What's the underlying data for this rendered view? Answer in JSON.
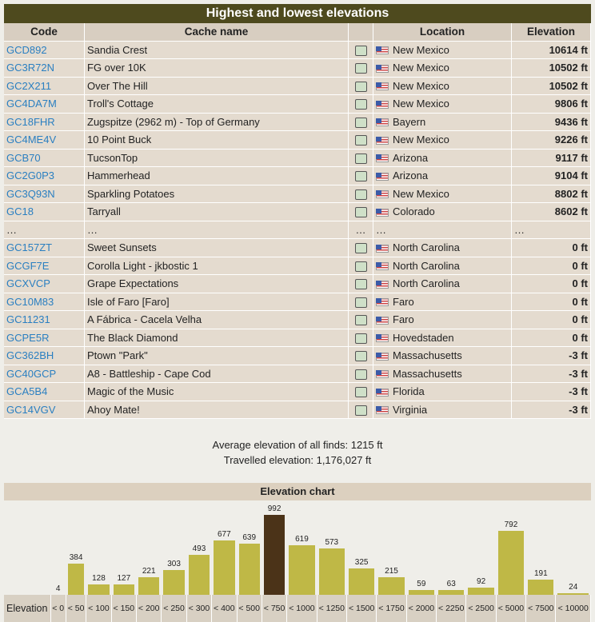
{
  "table": {
    "title": "Highest and lowest elevations",
    "headers": [
      "Code",
      "Cache name",
      "Location",
      "Elevation"
    ],
    "rows": [
      {
        "code": "GCD892",
        "name": "Sandia Crest",
        "location": "New Mexico",
        "elevation": "10614 ft"
      },
      {
        "code": "GC3R72N",
        "name": "FG over 10K",
        "location": "New Mexico",
        "elevation": "10502 ft"
      },
      {
        "code": "GC2X211",
        "name": "Over The Hill",
        "location": "New Mexico",
        "elevation": "10502 ft"
      },
      {
        "code": "GC4DA7M",
        "name": "Troll's Cottage",
        "location": "New Mexico",
        "elevation": "9806 ft"
      },
      {
        "code": "GC18FHR",
        "name": "Zugspitze (2962 m) - Top of Germany",
        "location": "Bayern",
        "elevation": "9436 ft"
      },
      {
        "code": "GC4ME4V",
        "name": "10 Point Buck",
        "location": "New Mexico",
        "elevation": "9226 ft"
      },
      {
        "code": "GCB70",
        "name": "TucsonTop",
        "location": "Arizona",
        "elevation": "9117 ft"
      },
      {
        "code": "GC2G0P3",
        "name": "Hammerhead",
        "location": "Arizona",
        "elevation": "9104 ft"
      },
      {
        "code": "GC3Q93N",
        "name": "Sparkling Potatoes",
        "location": "New Mexico",
        "elevation": "8802 ft"
      },
      {
        "code": "GC18",
        "name": "Tarryall",
        "location": "Colorado",
        "elevation": "8602 ft"
      },
      {
        "code": "…",
        "name": "…",
        "icon": "…",
        "location": "…",
        "elevation": "…"
      },
      {
        "code": "GC157ZT",
        "name": "Sweet Sunsets",
        "location": "North Carolina",
        "elevation": "0 ft"
      },
      {
        "code": "GCGF7E",
        "name": "Corolla Light - jkbostic 1",
        "location": "North Carolina",
        "elevation": "0 ft"
      },
      {
        "code": "GCXVCP",
        "name": "Grape Expectations",
        "location": "North Carolina",
        "elevation": "0 ft"
      },
      {
        "code": "GC10M83",
        "name": "Isle of Faro [Faro]",
        "location": "Faro",
        "elevation": "0 ft"
      },
      {
        "code": "GC11231",
        "name": "A Fábrica - Cacela Velha",
        "location": "Faro",
        "elevation": "0 ft"
      },
      {
        "code": "GCPE5R",
        "name": "The Black Diamond",
        "location": "Hovedstaden",
        "elevation": "0 ft"
      },
      {
        "code": "GC362BH",
        "name": "Ptown \"Park\"",
        "location": "Massachusetts",
        "elevation": "-3 ft"
      },
      {
        "code": "GC40GCP",
        "name": "A8 - Battleship - Cape Cod",
        "location": "Massachusetts",
        "elevation": "-3 ft"
      },
      {
        "code": "GCA5B4",
        "name": "Magic of the Music",
        "location": "Florida",
        "elevation": "-3 ft"
      },
      {
        "code": "GC14VGV",
        "name": "Ahoy Mate!",
        "location": "Virginia",
        "elevation": "-3 ft"
      }
    ]
  },
  "summary": [
    "Average elevation of all finds: 1215 ft",
    "Travelled elevation: 1,176,027 ft"
  ],
  "chart_data": {
    "type": "bar",
    "title": "Elevation chart",
    "category_label": "Elevation",
    "categories": [
      "< 0",
      "< 50",
      "< 100",
      "< 150",
      "< 200",
      "< 250",
      "< 300",
      "< 400",
      "< 500",
      "< 750",
      "< 1000",
      "< 1250",
      "< 1500",
      "< 1750",
      "< 2000",
      "< 2250",
      "< 2500",
      "< 5000",
      "< 7500",
      "< 10000"
    ],
    "values": [
      4,
      384,
      128,
      127,
      221,
      303,
      493,
      677,
      639,
      992,
      619,
      573,
      325,
      215,
      59,
      63,
      92,
      792,
      191,
      24
    ],
    "colors": [
      "#bfb846",
      "#bfb846",
      "#bfb846",
      "#bfb846",
      "#bfb846",
      "#bfb846",
      "#bfb846",
      "#bfb846",
      "#bfb846",
      "#4b3318",
      "#bfb846",
      "#bfb846",
      "#bfb846",
      "#bfb846",
      "#bfb846",
      "#bfb846",
      "#bfb846",
      "#bfb846",
      "#bfb846",
      "#bfb846"
    ]
  }
}
